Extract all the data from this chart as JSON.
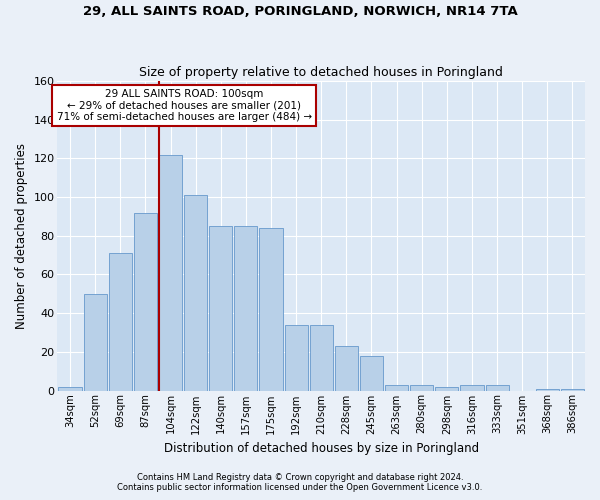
{
  "title": "29, ALL SAINTS ROAD, PORINGLAND, NORWICH, NR14 7TA",
  "subtitle": "Size of property relative to detached houses in Poringland",
  "xlabel": "Distribution of detached houses by size in Poringland",
  "ylabel": "Number of detached properties",
  "bar_color": "#b8d0e8",
  "bar_edge_color": "#6699cc",
  "background_color": "#dce8f5",
  "grid_color": "#ffffff",
  "annotation_line_color": "#aa0000",
  "categories": [
    "34sqm",
    "52sqm",
    "69sqm",
    "87sqm",
    "104sqm",
    "122sqm",
    "140sqm",
    "157sqm",
    "175sqm",
    "192sqm",
    "210sqm",
    "228sqm",
    "245sqm",
    "263sqm",
    "280sqm",
    "298sqm",
    "316sqm",
    "333sqm",
    "351sqm",
    "368sqm",
    "386sqm"
  ],
  "values": [
    2,
    50,
    71,
    92,
    122,
    101,
    85,
    85,
    84,
    34,
    34,
    23,
    18,
    3,
    3,
    2,
    3,
    3,
    0,
    1,
    1
  ],
  "ylim": [
    0,
    160
  ],
  "yticks": [
    0,
    20,
    40,
    60,
    80,
    100,
    120,
    140,
    160
  ],
  "property_label": "29 ALL SAINTS ROAD: 100sqm",
  "annotation_text1": "← 29% of detached houses are smaller (201)",
  "annotation_text2": "71% of semi-detached houses are larger (484) →",
  "vline_x_index": 4,
  "footer1": "Contains HM Land Registry data © Crown copyright and database right 2024.",
  "footer2": "Contains public sector information licensed under the Open Government Licence v3.0."
}
